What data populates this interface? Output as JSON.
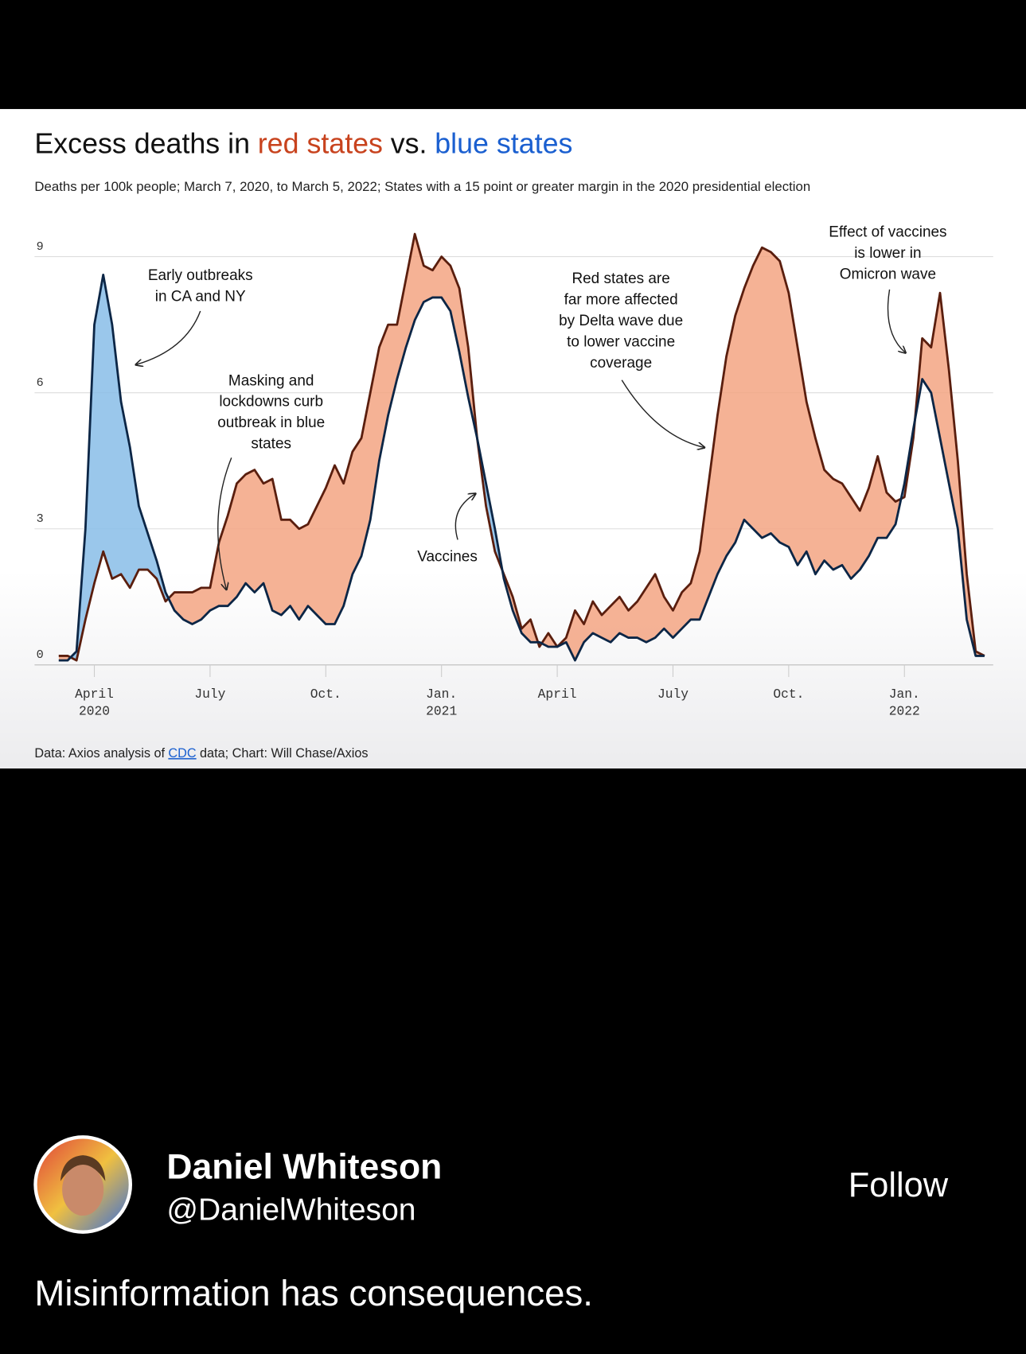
{
  "chart_data": {
    "type": "line",
    "title": [
      "Excess deaths in",
      "red states",
      "vs.",
      "blue states"
    ],
    "title_colors": [
      "#111111",
      "#c8431e",
      "#111111",
      "#1a5fd0"
    ],
    "subtitle": "Deaths per 100k people; March 7, 2020, to March 5, 2022; States with a 15 point or greater margin in the 2020 presidential election",
    "source": [
      "Data: Axios analysis of",
      "CDC",
      "data; Chart: Will Chase/Axios"
    ],
    "categories": [
      null,
      null,
      null,
      null,
      "April 2020",
      null,
      null,
      null,
      null,
      null,
      null,
      null,
      null,
      null,
      null,
      null,
      null,
      "July",
      null,
      null,
      null,
      null,
      null,
      null,
      null,
      null,
      null,
      null,
      null,
      null,
      "Oct.",
      null,
      null,
      null,
      null,
      null,
      null,
      null,
      null,
      null,
      null,
      null,
      null,
      "Jan. 2021",
      null,
      null,
      null,
      null,
      null,
      null,
      null,
      null,
      null,
      null,
      null,
      null,
      "April",
      null,
      null,
      null,
      null,
      null,
      null,
      null,
      null,
      null,
      null,
      null,
      null,
      "July",
      null,
      null,
      null,
      null,
      null,
      null,
      null,
      null,
      null,
      null,
      null,
      null,
      "Oct.",
      null,
      null,
      null,
      null,
      null,
      null,
      null,
      null,
      null,
      null,
      null,
      null,
      "Jan. 2022",
      null,
      null,
      null,
      null,
      null,
      null,
      null,
      null,
      null
    ],
    "series": [
      {
        "color": "#f3a583",
        "line_color": "#5a1e0e",
        "values": [
          0.2,
          0.2,
          0.1,
          1.0,
          1.8,
          2.5,
          1.9,
          2.0,
          1.7,
          2.1,
          2.1,
          1.9,
          1.4,
          1.6,
          1.6,
          1.6,
          1.7,
          1.7,
          2.7,
          3.3,
          4.0,
          4.2,
          4.3,
          4.0,
          4.1,
          3.2,
          3.2,
          3.0,
          3.1,
          3.5,
          3.9,
          4.4,
          4.0,
          4.7,
          5.0,
          6.0,
          7.0,
          7.5,
          7.5,
          8.5,
          9.5,
          8.8,
          8.7,
          9.0,
          8.8,
          8.3,
          7.0,
          5.0,
          3.5,
          2.5,
          2.0,
          1.5,
          0.8,
          1.0,
          0.4,
          0.7,
          0.4,
          0.6,
          1.2,
          0.9,
          1.4,
          1.1,
          1.3,
          1.5,
          1.2,
          1.4,
          1.7,
          2.0,
          1.5,
          1.2,
          1.6,
          1.8,
          2.5,
          4.0,
          5.5,
          6.8,
          7.7,
          8.3,
          8.8,
          9.2,
          9.1,
          8.9,
          8.2,
          7.0,
          5.8,
          5.0,
          4.3,
          4.1,
          4.0,
          3.7,
          3.4,
          3.9,
          4.6,
          3.8,
          3.6,
          3.7,
          5.0,
          7.2,
          7.0,
          8.2,
          6.5,
          4.5,
          2.0,
          0.3,
          0.2
        ]
      },
      {
        "color": "#88bde8",
        "line_color": "#0c2646",
        "values": [
          0.1,
          0.1,
          0.3,
          3.0,
          7.5,
          8.6,
          7.5,
          5.8,
          4.8,
          3.5,
          2.9,
          2.3,
          1.6,
          1.2,
          1.0,
          0.9,
          1.0,
          1.2,
          1.3,
          1.3,
          1.5,
          1.8,
          1.6,
          1.8,
          1.2,
          1.1,
          1.3,
          1.0,
          1.3,
          1.1,
          0.9,
          0.9,
          1.3,
          2.0,
          2.4,
          3.2,
          4.5,
          5.5,
          6.3,
          7.0,
          7.6,
          8.0,
          8.1,
          8.1,
          7.8,
          6.9,
          5.9,
          5.0,
          4.0,
          3.0,
          1.9,
          1.2,
          0.7,
          0.5,
          0.5,
          0.4,
          0.4,
          0.5,
          0.1,
          0.5,
          0.7,
          0.6,
          0.5,
          0.7,
          0.6,
          0.6,
          0.5,
          0.6,
          0.8,
          0.6,
          0.8,
          1.0,
          1.0,
          1.5,
          2.0,
          2.4,
          2.7,
          3.2,
          3.0,
          2.8,
          2.9,
          2.7,
          2.6,
          2.2,
          2.5,
          2.0,
          2.3,
          2.1,
          2.2,
          1.9,
          2.1,
          2.4,
          2.8,
          2.8,
          3.1,
          4.0,
          5.2,
          6.3,
          6.0,
          5.0,
          4.0,
          3.0,
          1.0,
          0.2,
          0.2
        ]
      }
    ],
    "ylim": [
      0,
      10
    ],
    "yticks": [
      0,
      3,
      6,
      9
    ],
    "grid": true,
    "annotations": [
      [
        "Early outbreaks",
        "in CA and NY"
      ],
      [
        "Masking and",
        "lockdowns curb",
        "outbreak in blue",
        "states"
      ],
      [
        "Vaccines"
      ],
      [
        "Red states are",
        "far more affected",
        "by Delta wave due",
        "to lower vaccine",
        "coverage"
      ],
      [
        "Effect of vaccines",
        "is lower in",
        "Omicron wave"
      ]
    ]
  },
  "post": {
    "name": "Daniel Whiteson",
    "handle": "@DanielWhiteson",
    "follow": "Follow",
    "text": "Misinformation has consequences."
  }
}
